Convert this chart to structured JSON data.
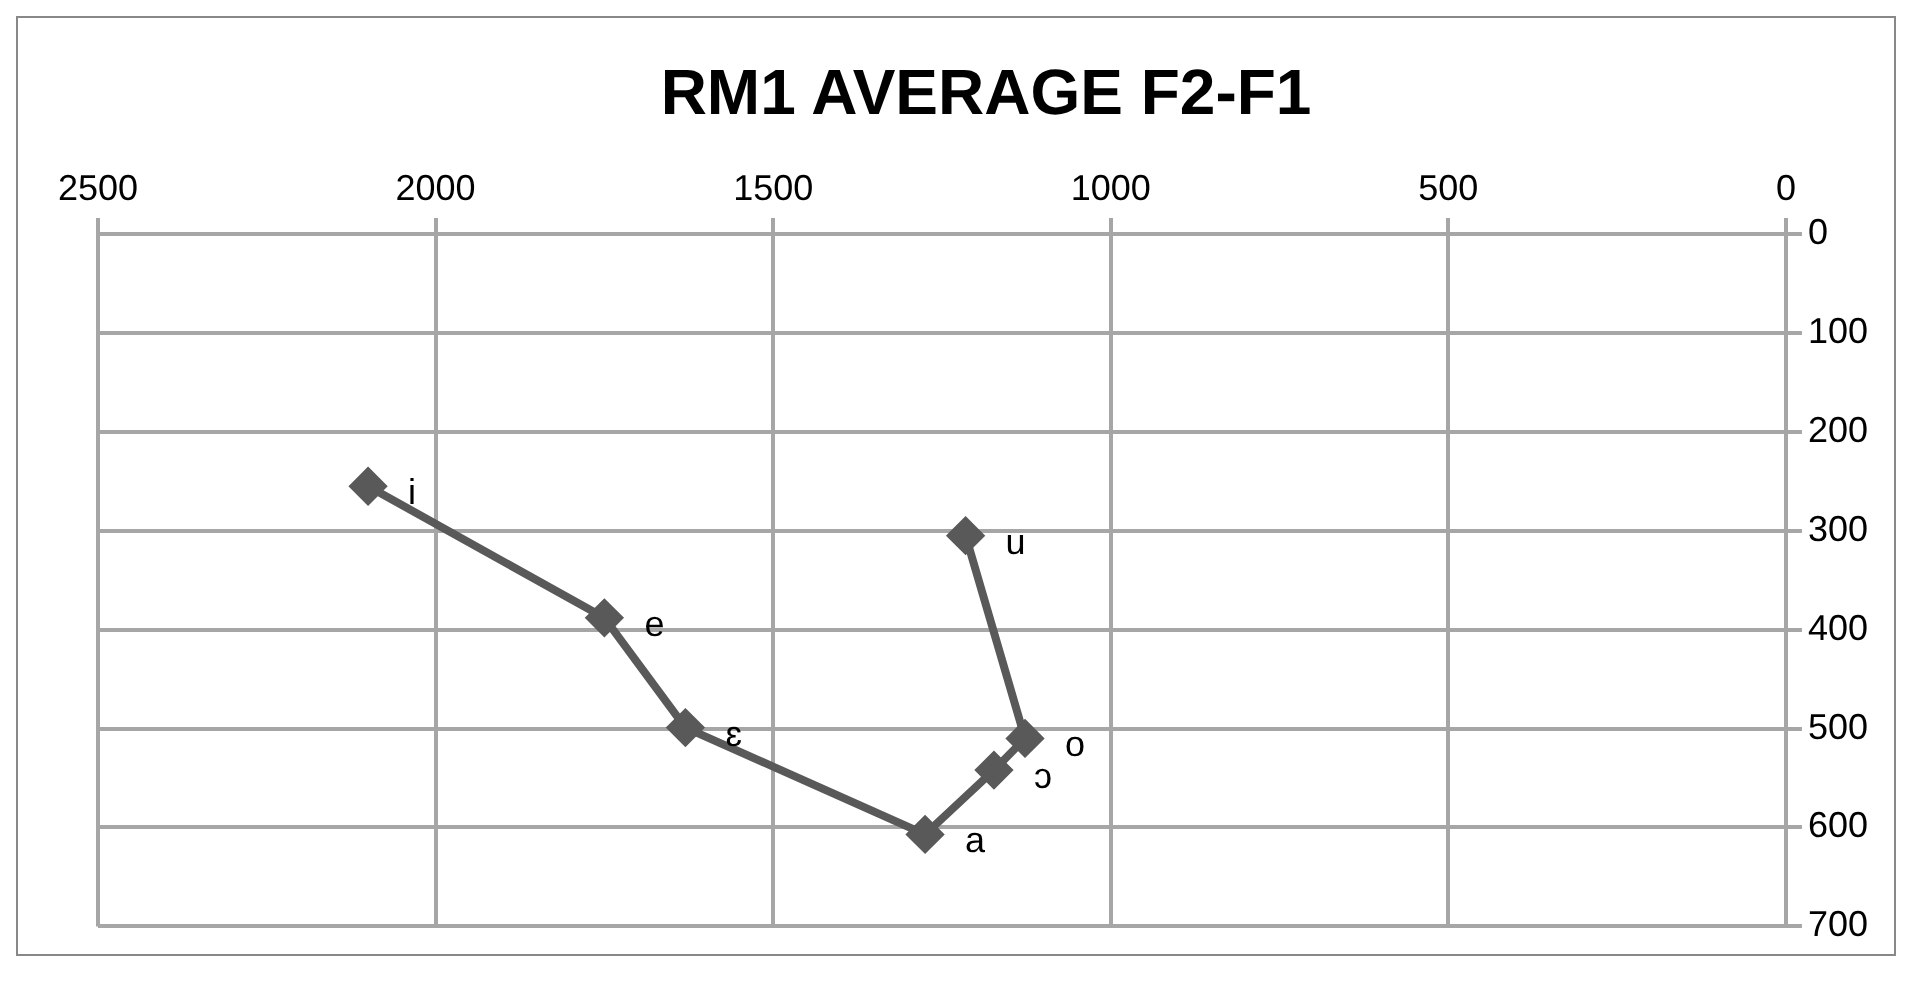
{
  "chart_data": {
    "type": "line",
    "title": "RM1 AVERAGE F2-F1",
    "x": [
      2100,
      1750,
      1630,
      1275,
      1173,
      1127,
      1215
    ],
    "series": [
      {
        "color": "#595959",
        "values": [
          255,
          388,
          499,
          607,
          542,
          510,
          305
        ]
      }
    ],
    "xlim": [
      2500,
      0
    ],
    "xticks": [
      2500,
      2000,
      1500,
      1000,
      500,
      0
    ],
    "ylim": [
      700,
      0
    ],
    "yticks": [
      0,
      100,
      200,
      300,
      400,
      500,
      600,
      700
    ],
    "grid": true,
    "legend": false,
    "marker": "diamond",
    "line_style": "solid",
    "annotations": [
      {
        "text": "i",
        "x": 2100,
        "y": 255
      },
      {
        "text": "e",
        "x": 1750,
        "y": 388
      },
      {
        "text": "ɛ",
        "x": 1630,
        "y": 499
      },
      {
        "text": "a",
        "x": 1275,
        "y": 607
      },
      {
        "text": "ɔ",
        "x": 1173,
        "y": 542
      },
      {
        "text": "o",
        "x": 1127,
        "y": 510
      },
      {
        "text": "u",
        "x": 1215,
        "y": 305
      }
    ]
  }
}
